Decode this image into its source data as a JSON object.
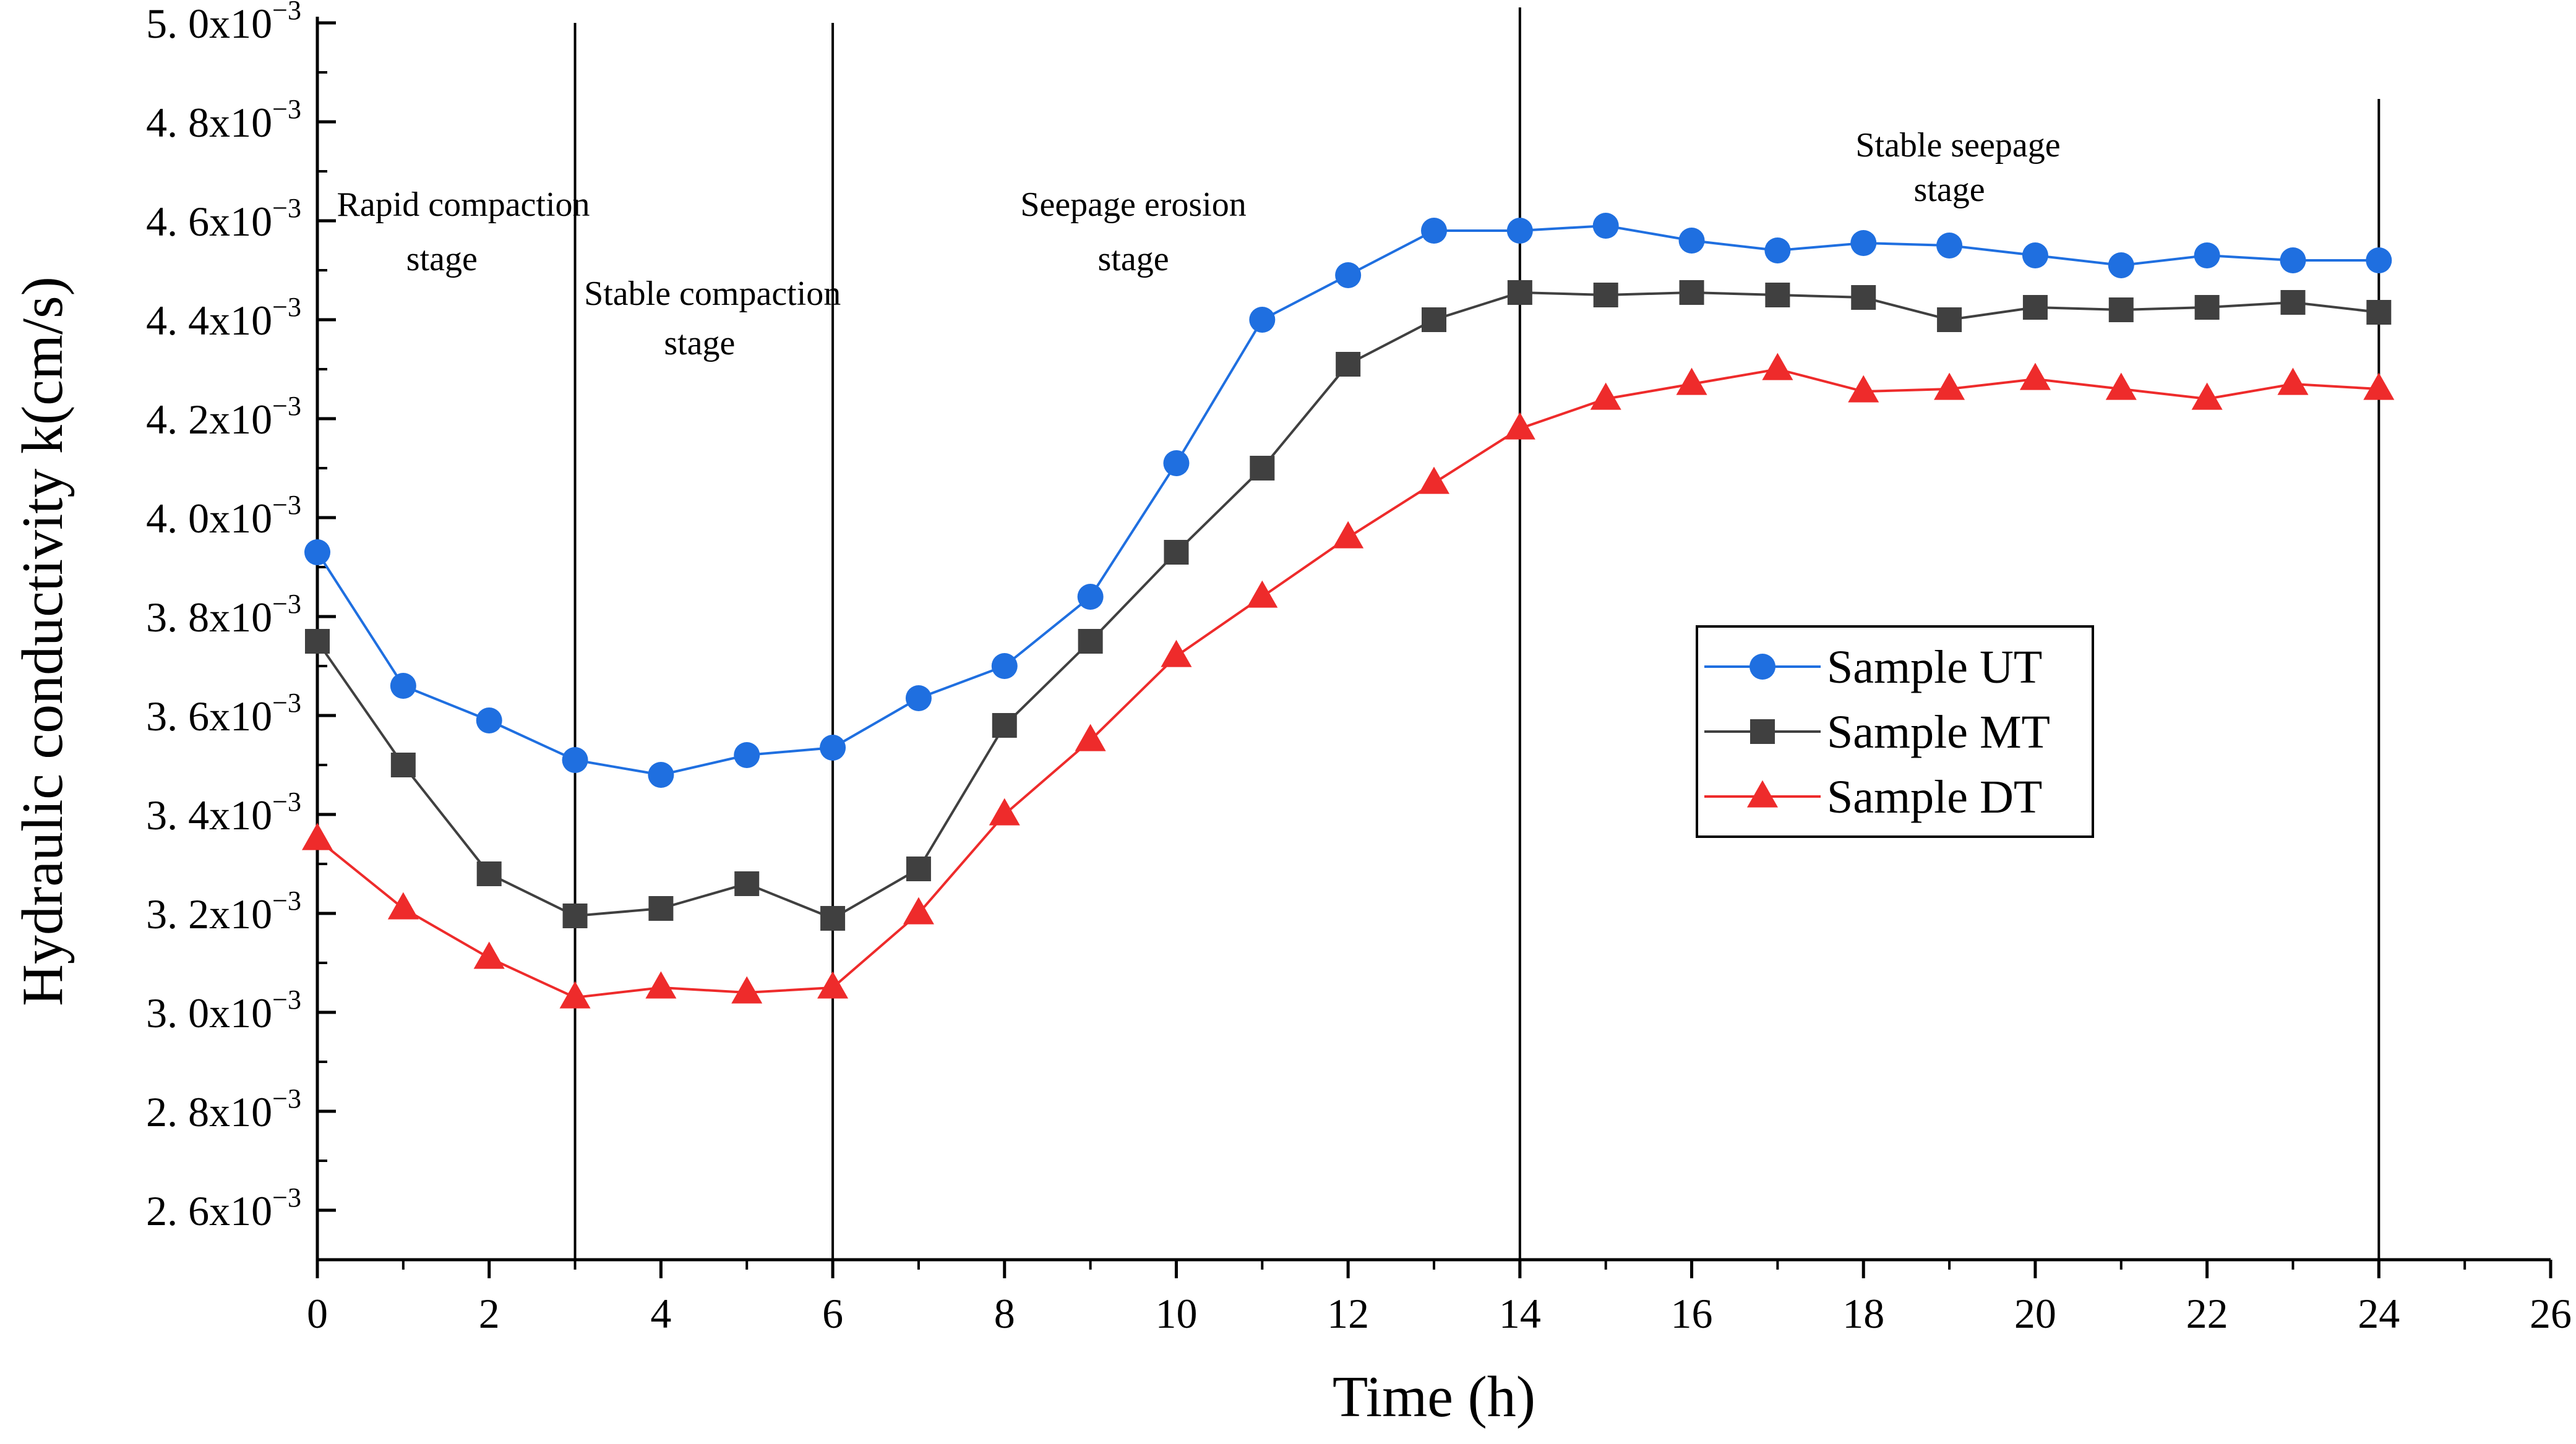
{
  "chart_data": {
    "type": "line",
    "title": "",
    "xlabel": "Time (h)",
    "ylabel": "Hydraulic conductivity k(cm/s)",
    "xlim": [
      0,
      26
    ],
    "ylim": [
      2.5,
      5.0
    ],
    "x_ticks": [
      0,
      2,
      4,
      6,
      8,
      10,
      12,
      14,
      16,
      18,
      20,
      22,
      24,
      26
    ],
    "x_tick_labels": [
      "0",
      "2",
      "4",
      "6",
      "8",
      "10",
      "12",
      "14",
      "16",
      "18",
      "20",
      "22",
      "24",
      "26"
    ],
    "y_ticks": [
      2.6,
      2.8,
      3.0,
      3.2,
      3.4,
      3.6,
      3.8,
      4.0,
      4.2,
      4.4,
      4.6,
      4.8,
      5.0
    ],
    "y_tick_labels": [
      {
        "mantissa": "2. 6x10",
        "exponent": "−3"
      },
      {
        "mantissa": "2. 8x10",
        "exponent": "−3"
      },
      {
        "mantissa": "3. 0x10",
        "exponent": "−3"
      },
      {
        "mantissa": "3. 2x10",
        "exponent": "−3"
      },
      {
        "mantissa": "3. 4x10",
        "exponent": "−3"
      },
      {
        "mantissa": "3. 6x10",
        "exponent": "−3"
      },
      {
        "mantissa": "3. 8x10",
        "exponent": "−3"
      },
      {
        "mantissa": "4. 0x10",
        "exponent": "−3"
      },
      {
        "mantissa": "4. 2x10",
        "exponent": "−3"
      },
      {
        "mantissa": "4. 4x10",
        "exponent": "−3"
      },
      {
        "mantissa": "4. 6x10",
        "exponent": "−3"
      },
      {
        "mantissa": "4. 8x10",
        "exponent": "−3"
      },
      {
        "mantissa": "5. 0x10",
        "exponent": "−3"
      }
    ],
    "y_unit_scale": "x10^-3",
    "grid": false,
    "legend_position": "center-right",
    "stage_dividers": [
      3,
      6,
      14,
      24
    ],
    "annotations": [
      {
        "text": "Rapid compaction",
        "x": 1.7,
        "y": 4.61
      },
      {
        "text": "stage",
        "x": 1.45,
        "y": 4.5
      },
      {
        "text": "Stable compaction",
        "x": 4.6,
        "y": 4.43
      },
      {
        "text": "stage",
        "x": 4.45,
        "y": 4.33
      },
      {
        "text": "Seepage erosion",
        "x": 9.5,
        "y": 4.61
      },
      {
        "text": "stage",
        "x": 9.5,
        "y": 4.5
      },
      {
        "text": "Stable seepage",
        "x": 19.1,
        "y": 4.73
      },
      {
        "text": "stage",
        "x": 19.0,
        "y": 4.64
      }
    ],
    "x": [
      0,
      1,
      2,
      3,
      4,
      5,
      6,
      7,
      8,
      9,
      10,
      11,
      12,
      13,
      14,
      15,
      16,
      17,
      18,
      19,
      20,
      21,
      22,
      23,
      24
    ],
    "series": [
      {
        "name": "Sample UT",
        "color": "#1f6fe0",
        "marker": "circle",
        "values": [
          3.93,
          3.66,
          3.59,
          3.51,
          3.48,
          3.52,
          3.535,
          3.635,
          3.7,
          3.84,
          4.11,
          4.4,
          4.49,
          4.58,
          4.58,
          4.59,
          4.56,
          4.54,
          4.555,
          4.55,
          4.53,
          4.51,
          4.53,
          4.52,
          4.52
        ]
      },
      {
        "name": "Sample MT",
        "color": "#404040",
        "marker": "square",
        "values": [
          3.75,
          3.5,
          3.28,
          3.195,
          3.21,
          3.26,
          3.19,
          3.29,
          3.58,
          3.75,
          3.93,
          4.1,
          4.31,
          4.4,
          4.455,
          4.45,
          4.455,
          4.45,
          4.445,
          4.4,
          4.425,
          4.42,
          4.425,
          4.435,
          4.415
        ]
      },
      {
        "name": "Sample DT",
        "color": "#ee2b2b",
        "marker": "triangle",
        "values": [
          3.35,
          3.21,
          3.11,
          3.03,
          3.05,
          3.04,
          3.05,
          3.2,
          3.4,
          3.55,
          3.72,
          3.84,
          3.96,
          4.07,
          4.18,
          4.24,
          4.27,
          4.3,
          4.255,
          4.26,
          4.28,
          4.26,
          4.24,
          4.27,
          4.26
        ]
      }
    ]
  }
}
